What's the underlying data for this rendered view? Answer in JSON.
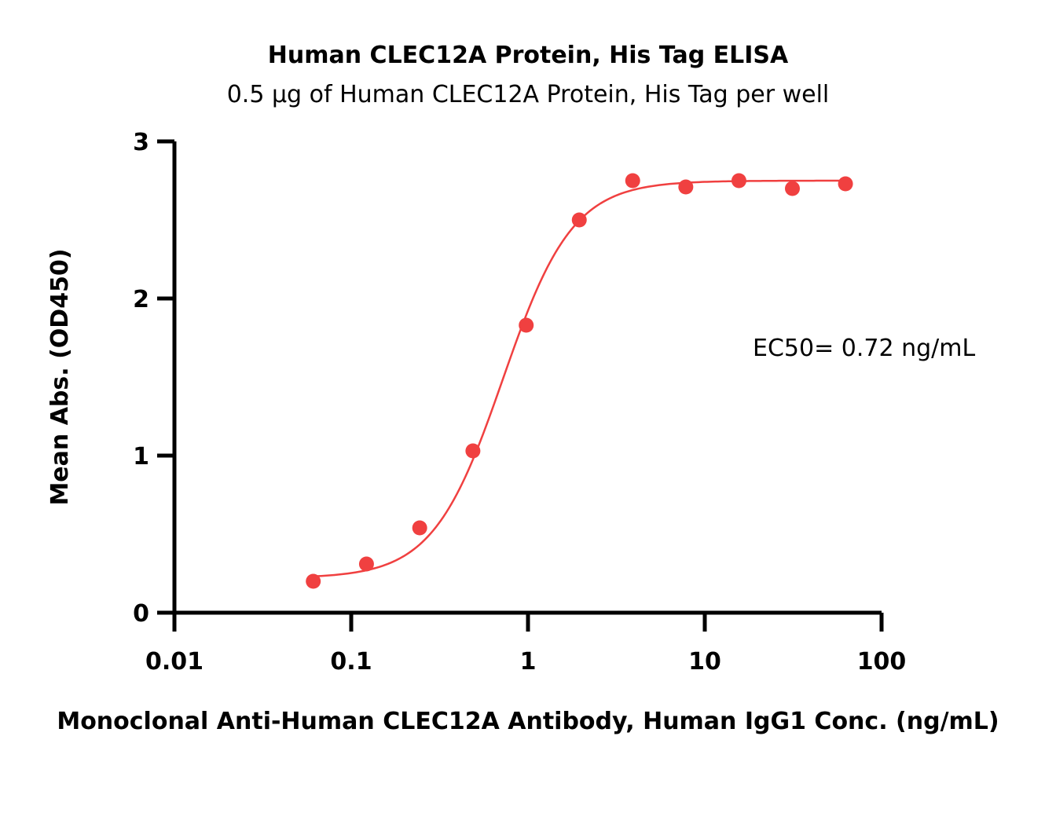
{
  "chart_data": {
    "type": "scatter",
    "title": "Human CLEC12A Protein, His Tag ELISA",
    "subtitle": "0.5 μg of Human CLEC12A Protein, His Tag per well",
    "xlabel": "Monoclonal Anti-Human CLEC12A Antibody, Human IgG1 Conc. (ng/mL)",
    "ylabel": "Mean Abs. (OD450)",
    "xscale": "log",
    "xlim": [
      0.01,
      100
    ],
    "ylim": [
      0,
      3
    ],
    "x_ticks": [
      0.01,
      0.1,
      1,
      10,
      100
    ],
    "x_tick_labels": [
      "0.01",
      "0.1",
      "1",
      "10",
      "100"
    ],
    "y_ticks": [
      0,
      1,
      2,
      3
    ],
    "y_tick_labels": [
      "0",
      "1",
      "2",
      "3"
    ],
    "annotation": "EC50= 0.72 ng/mL",
    "color": "#f04040",
    "series": [
      {
        "x": [
          0.061,
          0.122,
          0.244,
          0.488,
          0.977,
          1.95,
          3.91,
          7.81,
          15.6,
          31.3,
          62.5
        ],
        "y": [
          0.2,
          0.31,
          0.54,
          1.03,
          1.83,
          2.5,
          2.75,
          2.71,
          2.75,
          2.7,
          2.73
        ]
      }
    ],
    "fit": {
      "model": "4PL",
      "bottom": 0.22,
      "top": 2.75,
      "ec50": 0.72,
      "hill": 2.2
    }
  }
}
